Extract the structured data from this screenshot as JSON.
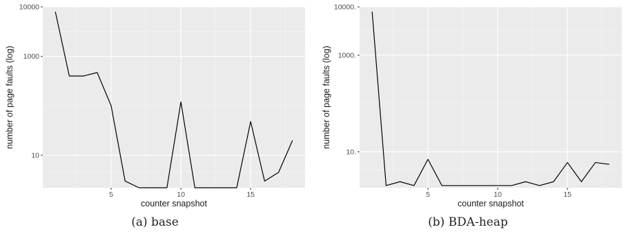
{
  "chart_data": [
    {
      "type": "line",
      "caption": "(a) base",
      "xlabel": "counter snapshot",
      "ylabel": "number of page faults (log)",
      "y_scale": "log",
      "x_ticks": [
        5,
        10,
        15
      ],
      "y_ticks": [
        10,
        1000,
        10000
      ],
      "y_tick_labels": [
        "10",
        "1000",
        "10000"
      ],
      "xlim": [
        0.1,
        18.9
      ],
      "ylim": [
        2.2,
        10000
      ],
      "grid": true,
      "background": "#ebebeb",
      "line_color": "#000000",
      "x": [
        1,
        2,
        3,
        4,
        5,
        6,
        7,
        8,
        9,
        10,
        11,
        12,
        13,
        14,
        15,
        16,
        17,
        18
      ],
      "y": [
        8000,
        400,
        400,
        470,
        100,
        3,
        2.2,
        2.2,
        2.2,
        120,
        2.2,
        2.2,
        2.2,
        2.2,
        48,
        3,
        4.5,
        20
      ]
    },
    {
      "type": "line",
      "caption": "(b) BDA-heap",
      "xlabel": "counter snapshot",
      "ylabel": "number of page faults (log)",
      "y_scale": "log",
      "x_ticks": [
        5,
        10,
        15
      ],
      "y_ticks": [
        10,
        1000,
        10000
      ],
      "y_tick_labels": [
        "10.",
        "1000.",
        "10000."
      ],
      "xlim": [
        0.1,
        18.9
      ],
      "ylim": [
        1.8,
        10000
      ],
      "grid": true,
      "background": "#ebebeb",
      "line_color": "#000000",
      "x": [
        1,
        2,
        3,
        4,
        5,
        6,
        7,
        8,
        9,
        10,
        11,
        12,
        13,
        14,
        15,
        16,
        17,
        18
      ],
      "y": [
        8000,
        2,
        2.4,
        2,
        7,
        2,
        2,
        2,
        2,
        2,
        2,
        2.4,
        2,
        2.4,
        6,
        2.4,
        6,
        5.5
      ]
    }
  ]
}
